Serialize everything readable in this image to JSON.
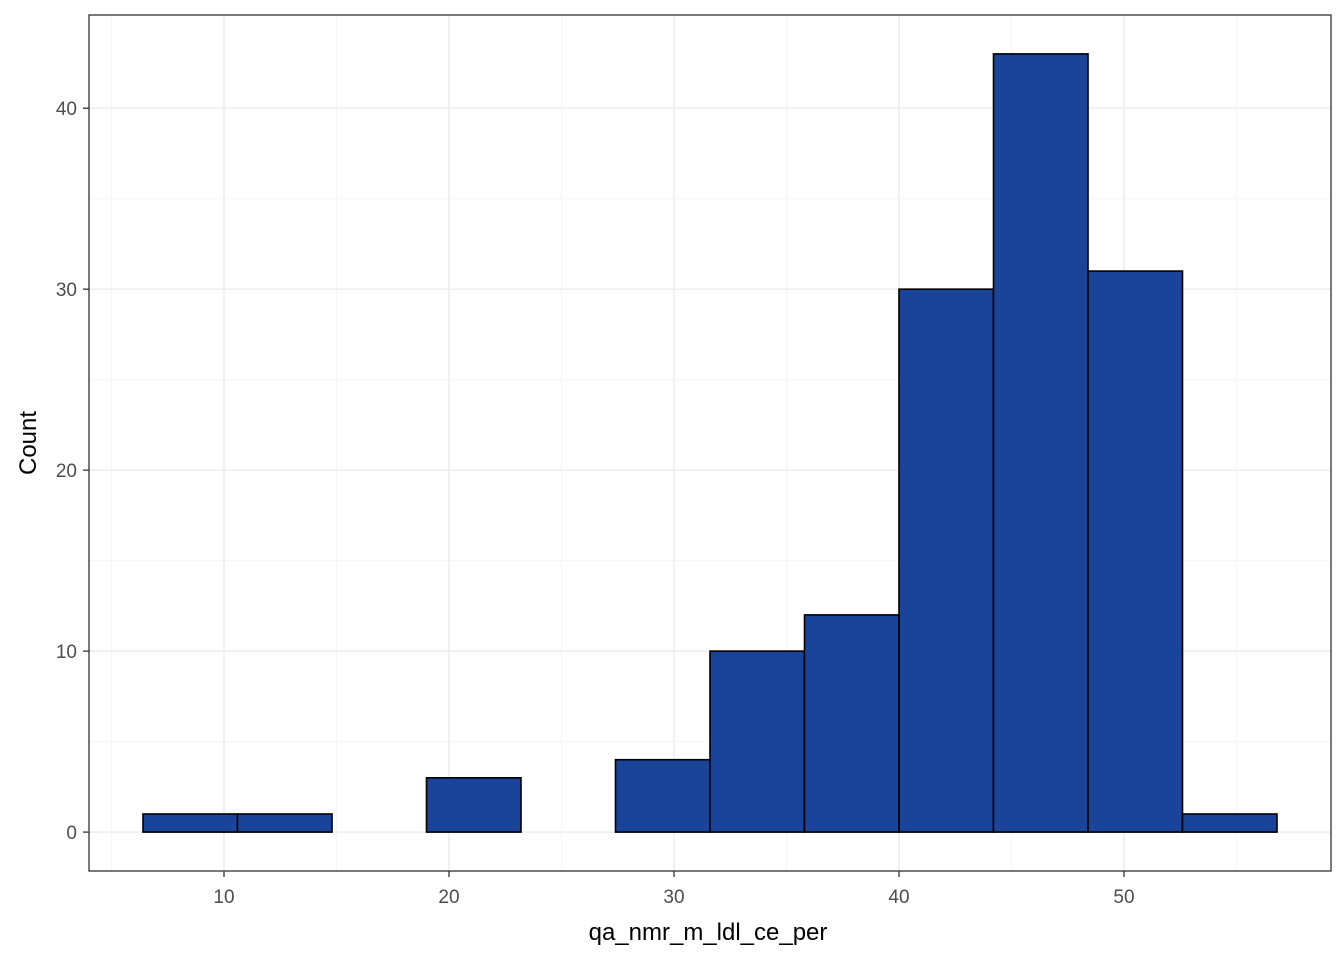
{
  "chart_data": {
    "type": "bar",
    "subtype": "histogram",
    "title": "",
    "xlabel": "qa_nmr_m_ldl_ce_per",
    "ylabel": "Count",
    "bins": [
      {
        "x_min": 6.4,
        "x_max": 10.6,
        "count": 1
      },
      {
        "x_min": 10.6,
        "x_max": 14.8,
        "count": 1
      },
      {
        "x_min": 14.8,
        "x_max": 19.0,
        "count": 0
      },
      {
        "x_min": 19.0,
        "x_max": 23.2,
        "count": 3
      },
      {
        "x_min": 23.2,
        "x_max": 27.4,
        "count": 0
      },
      {
        "x_min": 27.4,
        "x_max": 31.6,
        "count": 4
      },
      {
        "x_min": 31.6,
        "x_max": 35.8,
        "count": 10
      },
      {
        "x_min": 35.8,
        "x_max": 40.0,
        "count": 12
      },
      {
        "x_min": 40.0,
        "x_max": 44.2,
        "count": 30
      },
      {
        "x_min": 44.2,
        "x_max": 48.4,
        "count": 43
      },
      {
        "x_min": 48.4,
        "x_max": 52.6,
        "count": 31
      },
      {
        "x_min": 52.6,
        "x_max": 56.8,
        "count": 1
      }
    ],
    "xlim": [
      4.0,
      59.2
    ],
    "ylim": [
      -2.15,
      45.15
    ],
    "x_ticks": [
      10,
      20,
      30,
      40,
      50
    ],
    "y_ticks": [
      0,
      10,
      20,
      30,
      40
    ],
    "x_tick_labels": [
      "10",
      "20",
      "30",
      "40",
      "50"
    ],
    "y_tick_labels": [
      "0",
      "10",
      "20",
      "30",
      "40"
    ],
    "x_minor_ticks": [
      5,
      15,
      25,
      35,
      45,
      55
    ],
    "y_minor_ticks": [
      5,
      15,
      25,
      35
    ],
    "grid": true,
    "legend": "none",
    "colors": {
      "bar_fill": "#1a4499",
      "bar_outline": "#000000",
      "grid_major": "#ebebeb",
      "grid_minor": "#f5f5f5",
      "panel_border": "#333333"
    }
  }
}
